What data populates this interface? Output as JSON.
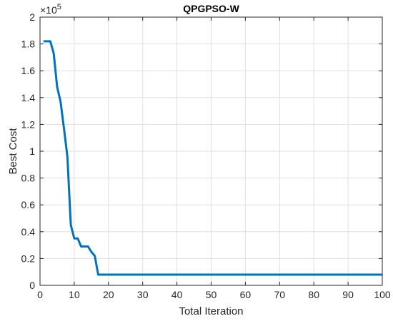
{
  "chart_data": {
    "type": "line",
    "title": "QPGPSO-W",
    "xlabel": "Total Iteration",
    "ylabel": "Best Cost",
    "y_exponent_base": "×10",
    "y_exponent_power": "5",
    "xlim": [
      0,
      100
    ],
    "ylim": [
      0,
      2
    ],
    "x_ticks": [
      0,
      10,
      20,
      30,
      40,
      50,
      60,
      70,
      80,
      90,
      100
    ],
    "y_ticks": [
      0,
      0.2,
      0.4,
      0.6,
      0.8,
      1,
      1.2,
      1.4,
      1.6,
      1.8,
      2
    ],
    "x_tick_labels": [
      "0",
      "10",
      "20",
      "30",
      "40",
      "50",
      "60",
      "70",
      "80",
      "90",
      "100"
    ],
    "y_tick_labels": [
      "0",
      "0.2",
      "0.4",
      "0.6",
      "0.8",
      "1",
      "1.2",
      "1.4",
      "1.6",
      "1.8",
      "2"
    ],
    "grid": true,
    "colors": {
      "line": "#0072BD",
      "grid": "#dfdfdf",
      "axis": "#262626"
    },
    "series": [
      {
        "x": [
          1,
          3,
          4,
          5,
          6,
          7,
          8,
          9,
          10,
          11,
          12,
          13,
          14,
          15,
          16,
          17,
          18,
          20,
          30,
          40,
          50,
          60,
          70,
          80,
          90,
          100
        ],
        "y": [
          1.82,
          1.82,
          1.73,
          1.48,
          1.37,
          1.17,
          0.96,
          0.45,
          0.35,
          0.35,
          0.29,
          0.29,
          0.29,
          0.25,
          0.22,
          0.08,
          0.08,
          0.08,
          0.08,
          0.08,
          0.08,
          0.08,
          0.08,
          0.08,
          0.08,
          0.08
        ]
      }
    ]
  }
}
